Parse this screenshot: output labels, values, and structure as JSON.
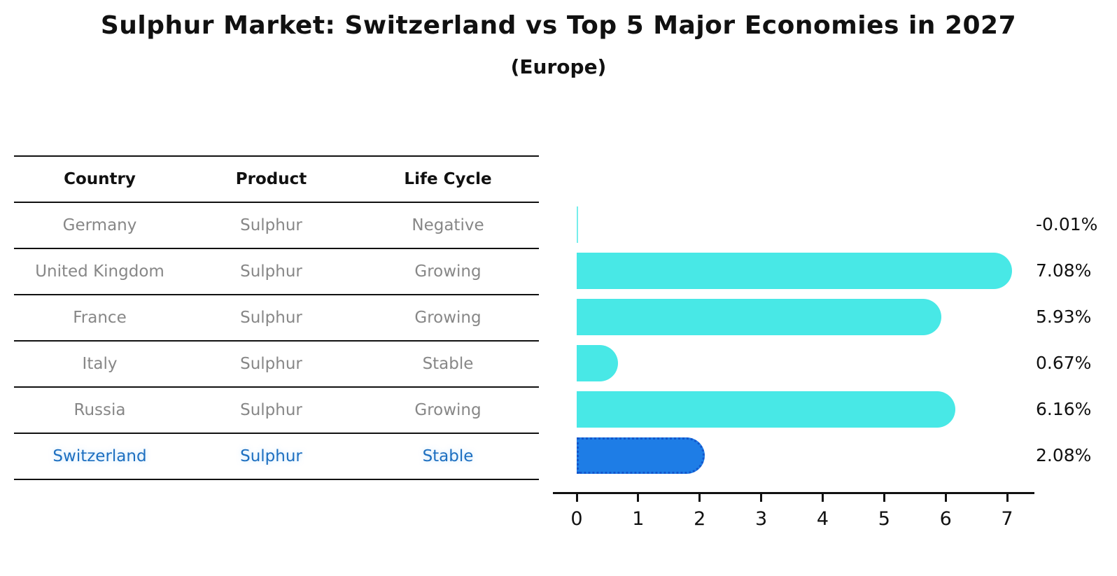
{
  "title": "Sulphur Market: Switzerland vs Top 5 Major Economies in 2027",
  "subtitle": "(Europe)",
  "table": {
    "headers": [
      "Country",
      "Product",
      "Life Cycle"
    ],
    "rows": [
      {
        "country": "Germany",
        "product": "Sulphur",
        "life_cycle": "Negative",
        "highlighted": false
      },
      {
        "country": "United Kingdom",
        "product": "Sulphur",
        "life_cycle": "Growing",
        "highlighted": false
      },
      {
        "country": "France",
        "product": "Sulphur",
        "life_cycle": "Growing",
        "highlighted": false
      },
      {
        "country": "Italy",
        "product": "Sulphur",
        "life_cycle": "Stable",
        "highlighted": false
      },
      {
        "country": "Russia",
        "product": "Sulphur",
        "life_cycle": "Growing",
        "highlighted": false
      },
      {
        "country": "Switzerland",
        "product": "Sulphur",
        "life_cycle": "Stable",
        "highlighted": true
      }
    ]
  },
  "chart_data": {
    "type": "bar",
    "orientation": "horizontal",
    "title": "Sulphur Market: Switzerland vs Top 5 Major Economies in 2027",
    "subtitle": "(Europe)",
    "categories": [
      "Germany",
      "United Kingdom",
      "France",
      "Italy",
      "Russia",
      "Switzerland"
    ],
    "values": [
      -0.01,
      7.08,
      5.93,
      0.67,
      6.16,
      2.08
    ],
    "bar_labels": [
      "-0.01%",
      "7.08%",
      "5.93%",
      "0.67%",
      "6.16%",
      "2.08%"
    ],
    "x_ticks": [
      0,
      1,
      2,
      3,
      4,
      5,
      6,
      7
    ],
    "xlim": [
      0,
      7.45
    ],
    "grid": false,
    "legend": null,
    "highlight_index": 5,
    "colors": {
      "bar_default": "#48e8e6",
      "bar_highlight": "#1e7de6",
      "bar_highlight_border": "#1356cc",
      "value_label_text": "#111111",
      "table_text": "#878787",
      "table_header_text": "#111111",
      "highlight_text": "#1d6fc0"
    }
  }
}
